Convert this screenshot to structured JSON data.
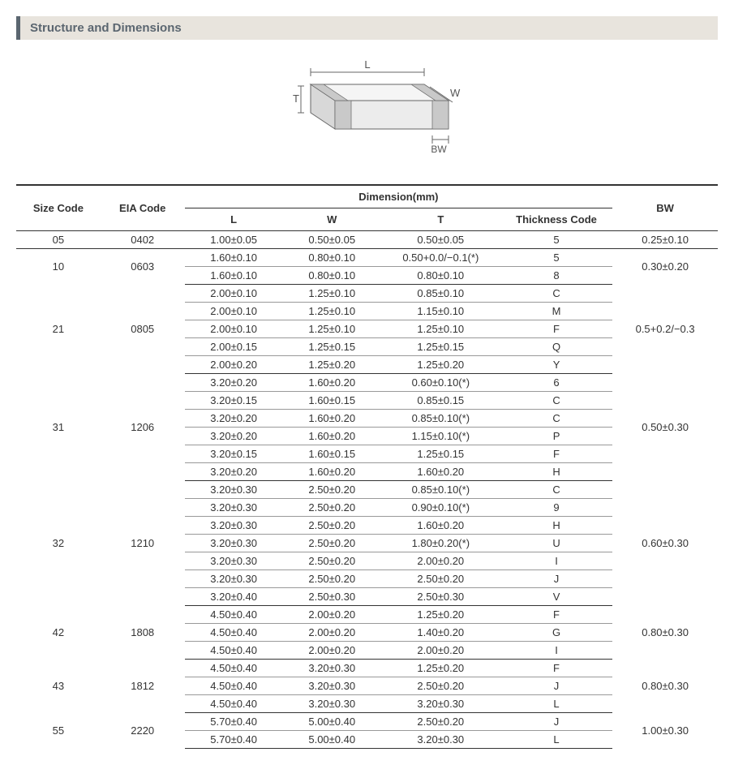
{
  "title": "Structure and Dimensions",
  "diagram": {
    "L": "L",
    "W": "W",
    "T": "T",
    "BW": "BW"
  },
  "header": {
    "size": "Size Code",
    "eia": "EIA Code",
    "dim": "Dimension(mm)",
    "L": "L",
    "W": "W",
    "T": "T",
    "thick": "Thickness  Code",
    "BW": "BW"
  },
  "groups": [
    {
      "size": "05",
      "eia": "0402",
      "bw": "0.25±0.10",
      "rows": [
        {
          "l": "1.00±0.05",
          "w": "0.50±0.05",
          "t": "0.50±0.05",
          "th": "5"
        }
      ]
    },
    {
      "size": "10",
      "eia": "0603",
      "bw": "0.30±0.20",
      "rows": [
        {
          "l": "1.60±0.10",
          "w": "0.80±0.10",
          "t": "0.50+0.0/−0.1(*)",
          "th": "5"
        },
        {
          "l": "1.60±0.10",
          "w": "0.80±0.10",
          "t": "0.80±0.10",
          "th": "8"
        }
      ]
    },
    {
      "size": "21",
      "eia": "0805",
      "bw": "0.5+0.2/−0.3",
      "rows": [
        {
          "l": "2.00±0.10",
          "w": "1.25±0.10",
          "t": "0.85±0.10",
          "th": "C"
        },
        {
          "l": "2.00±0.10",
          "w": "1.25±0.10",
          "t": "1.15±0.10",
          "th": "M"
        },
        {
          "l": "2.00±0.10",
          "w": "1.25±0.10",
          "t": "1.25±0.10",
          "th": "F"
        },
        {
          "l": "2.00±0.15",
          "w": "1.25±0.15",
          "t": "1.25±0.15",
          "th": "Q"
        },
        {
          "l": "2.00±0.20",
          "w": "1.25±0.20",
          "t": "1.25±0.20",
          "th": "Y"
        }
      ]
    },
    {
      "size": "31",
      "eia": "1206",
      "bw": "0.50±0.30",
      "rows": [
        {
          "l": "3.20±0.20",
          "w": "1.60±0.20",
          "t": "0.60±0.10(*)",
          "th": "6"
        },
        {
          "l": "3.20±0.15",
          "w": "1.60±0.15",
          "t": "0.85±0.15",
          "th": "C"
        },
        {
          "l": "3.20±0.20",
          "w": "1.60±0.20",
          "t": "0.85±0.10(*)",
          "th": "C"
        },
        {
          "l": "3.20±0.20",
          "w": "1.60±0.20",
          "t": "1.15±0.10(*)",
          "th": "P"
        },
        {
          "l": "3.20±0.15",
          "w": "1.60±0.15",
          "t": "1.25±0.15",
          "th": "F"
        },
        {
          "l": "3.20±0.20",
          "w": "1.60±0.20",
          "t": "1.60±0.20",
          "th": "H"
        }
      ]
    },
    {
      "size": "32",
      "eia": "1210",
      "bw": "0.60±0.30",
      "rows": [
        {
          "l": "3.20±0.30",
          "w": "2.50±0.20",
          "t": "0.85±0.10(*)",
          "th": "C"
        },
        {
          "l": "3.20±0.30",
          "w": "2.50±0.20",
          "t": "0.90±0.10(*)",
          "th": "9"
        },
        {
          "l": "3.20±0.30",
          "w": "2.50±0.20",
          "t": "1.60±0.20",
          "th": "H"
        },
        {
          "l": "3.20±0.30",
          "w": "2.50±0.20",
          "t": "1.80±0.20(*)",
          "th": "U"
        },
        {
          "l": "3.20±0.30",
          "w": "2.50±0.20",
          "t": "2.00±0.20",
          "th": "I"
        },
        {
          "l": "3.20±0.30",
          "w": "2.50±0.20",
          "t": "2.50±0.20",
          "th": "J"
        },
        {
          "l": "3.20±0.40",
          "w": "2.50±0.30",
          "t": "2.50±0.30",
          "th": "V"
        }
      ]
    },
    {
      "size": "42",
      "eia": "1808",
      "bw": "0.80±0.30",
      "rows": [
        {
          "l": "4.50±0.40",
          "w": "2.00±0.20",
          "t": "1.25±0.20",
          "th": "F"
        },
        {
          "l": "4.50±0.40",
          "w": "2.00±0.20",
          "t": "1.40±0.20",
          "th": "G"
        },
        {
          "l": "4.50±0.40",
          "w": "2.00±0.20",
          "t": "2.00±0.20",
          "th": "I"
        }
      ]
    },
    {
      "size": "43",
      "eia": "1812",
      "bw": "0.80±0.30",
      "rows": [
        {
          "l": "4.50±0.40",
          "w": "3.20±0.30",
          "t": "1.25±0.20",
          "th": "F"
        },
        {
          "l": "4.50±0.40",
          "w": "3.20±0.30",
          "t": "2.50±0.20",
          "th": "J"
        },
        {
          "l": "4.50±0.40",
          "w": "3.20±0.30",
          "t": "3.20±0.30",
          "th": "L"
        }
      ]
    },
    {
      "size": "55",
      "eia": "2220",
      "bw": "1.00±0.30",
      "rows": [
        {
          "l": "5.70±0.40",
          "w": "5.00±0.40",
          "t": "2.50±0.20",
          "th": "J"
        },
        {
          "l": "5.70±0.40",
          "w": "5.00±0.40",
          "t": "3.20±0.30",
          "th": "L"
        }
      ]
    }
  ]
}
